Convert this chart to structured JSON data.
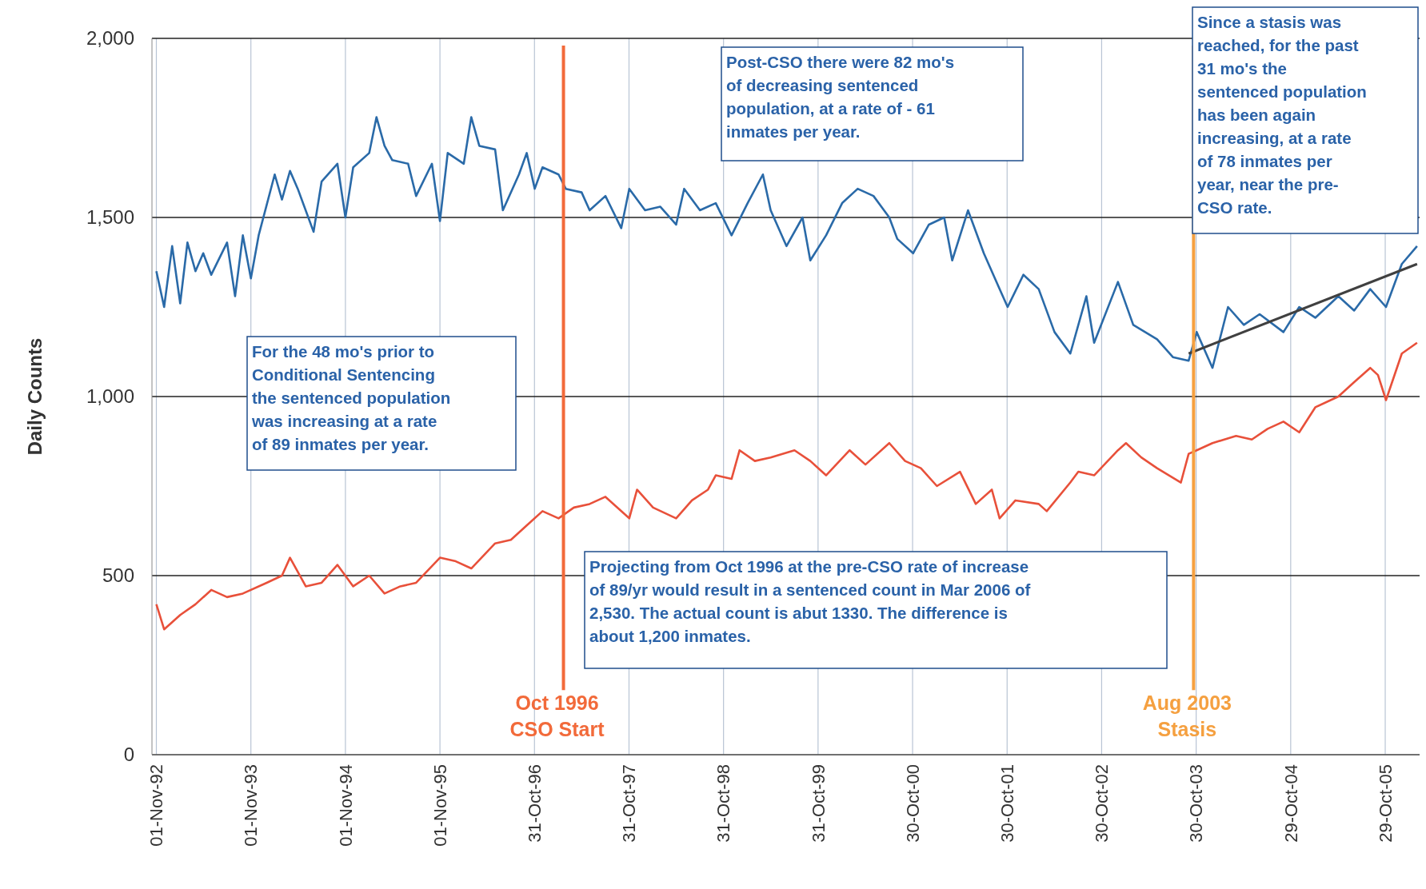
{
  "chart_data": {
    "type": "line",
    "ylabel": "Daily Counts",
    "xlim": [
      "1992-10-15",
      "2006-03-20"
    ],
    "xticks": [
      {
        "value": "1992-11-01",
        "label": "01-Nov-92"
      },
      {
        "value": "1993-11-01",
        "label": "01-Nov-93"
      },
      {
        "value": "1994-11-01",
        "label": "01-Nov-94"
      },
      {
        "value": "1995-11-01",
        "label": "01-Nov-95"
      },
      {
        "value": "1996-10-31",
        "label": "31-Oct-96"
      },
      {
        "value": "1997-10-31",
        "label": "31-Oct-97"
      },
      {
        "value": "1998-10-31",
        "label": "31-Oct-98"
      },
      {
        "value": "1999-10-31",
        "label": "31-Oct-99"
      },
      {
        "value": "2000-10-30",
        "label": "30-Oct-00"
      },
      {
        "value": "2001-10-30",
        "label": "30-Oct-01"
      },
      {
        "value": "2002-10-30",
        "label": "30-Oct-02"
      },
      {
        "value": "2003-10-30",
        "label": "30-Oct-03"
      },
      {
        "value": "2004-10-29",
        "label": "29-Oct-04"
      },
      {
        "value": "2005-10-29",
        "label": "29-Oct-05"
      }
    ],
    "ylim": [
      0,
      2000
    ],
    "yticks": [
      0,
      500,
      {
        "value": 1000,
        "label": "1,000"
      },
      {
        "value": 1500,
        "label": "1,500"
      },
      {
        "value": 2000,
        "label": "2,000"
      }
    ],
    "grid": true,
    "marker": "none",
    "line_style": "solid",
    "series": [
      {
        "color": "#2a6aa8",
        "x": [
          "1992-11",
          "1992-12",
          "1993-01",
          "1993-02",
          "1993-03",
          "1993-04",
          "1993-05",
          "1993-06",
          "1993-08",
          "1993-09",
          "1993-10",
          "1993-11",
          "1993-12",
          "1994-02",
          "1994-03",
          "1994-04",
          "1994-05",
          "1994-07",
          "1994-08",
          "1994-10",
          "1994-11",
          "1994-12",
          "1995-02",
          "1995-03",
          "1995-04",
          "1995-05",
          "1995-07",
          "1995-08",
          "1995-10",
          "1995-11",
          "1995-12",
          "1996-02",
          "1996-03",
          "1996-04",
          "1996-06",
          "1996-07",
          "1996-09",
          "1996-10",
          "1996-11",
          "1996-12",
          "1997-02",
          "1997-03",
          "1997-05",
          "1997-06",
          "1997-08",
          "1997-10",
          "1997-11",
          "1998-01",
          "1998-03",
          "1998-05",
          "1998-06",
          "1998-08",
          "1998-10",
          "1998-12",
          "1999-02",
          "1999-04",
          "1999-05",
          "1999-07",
          "1999-09",
          "1999-10",
          "1999-12",
          "2000-02",
          "2000-04",
          "2000-06",
          "2000-08",
          "2000-09",
          "2000-11",
          "2001-01",
          "2001-03",
          "2001-04",
          "2001-06",
          "2001-08",
          "2001-10",
          "2001-11",
          "2002-01",
          "2002-03",
          "2002-05",
          "2002-07",
          "2002-09",
          "2002-10",
          "2003-01",
          "2003-03",
          "2003-06",
          "2003-08",
          "2003-10",
          "2003-11",
          "2004-01",
          "2004-03",
          "2004-05",
          "2004-07",
          "2004-10",
          "2004-12",
          "2005-02",
          "2005-05",
          "2005-07",
          "2005-09",
          "2005-11",
          "2006-01",
          "2006-03"
        ],
        "values": [
          1350,
          1250,
          1420,
          1260,
          1430,
          1350,
          1400,
          1340,
          1430,
          1280,
          1450,
          1330,
          1450,
          1620,
          1550,
          1630,
          1580,
          1460,
          1600,
          1650,
          1500,
          1640,
          1680,
          1780,
          1700,
          1660,
          1650,
          1560,
          1650,
          1490,
          1680,
          1650,
          1780,
          1700,
          1690,
          1520,
          1620,
          1680,
          1580,
          1640,
          1620,
          1580,
          1570,
          1520,
          1560,
          1470,
          1580,
          1520,
          1530,
          1480,
          1580,
          1520,
          1540,
          1450,
          1540,
          1620,
          1520,
          1420,
          1500,
          1380,
          1450,
          1540,
          1580,
          1560,
          1500,
          1440,
          1400,
          1480,
          1500,
          1380,
          1520,
          1400,
          1300,
          1250,
          1340,
          1300,
          1180,
          1120,
          1280,
          1150,
          1320,
          1200,
          1160,
          1110,
          1100,
          1180,
          1080,
          1250,
          1200,
          1230,
          1180,
          1250,
          1220,
          1280,
          1240,
          1300,
          1250,
          1370,
          1420
        ]
      },
      {
        "color": "#e8503a",
        "x": [
          "1992-11",
          "1992-12",
          "1993-02",
          "1993-04",
          "1993-06",
          "1993-08",
          "1993-10",
          "1994-01",
          "1994-03",
          "1994-04",
          "1994-06",
          "1994-08",
          "1994-10",
          "1994-12",
          "1995-02",
          "1995-04",
          "1995-06",
          "1995-08",
          "1995-11",
          "1996-01",
          "1996-03",
          "1996-06",
          "1996-08",
          "1996-10",
          "1996-12",
          "1997-02",
          "1997-04",
          "1997-06",
          "1997-08",
          "1997-11",
          "1997-12",
          "1998-02",
          "1998-05",
          "1998-07",
          "1998-09",
          "1998-10",
          "1998-12",
          "1999-01",
          "1999-03",
          "1999-05",
          "1999-08",
          "1999-10",
          "1999-12",
          "2000-03",
          "2000-05",
          "2000-08",
          "2000-10",
          "2000-12",
          "2001-02",
          "2001-05",
          "2001-07",
          "2001-09",
          "2001-10",
          "2001-12",
          "2002-03",
          "2002-04",
          "2002-07",
          "2002-08",
          "2002-10",
          "2003-01",
          "2003-02",
          "2003-04",
          "2003-06",
          "2003-09",
          "2003-10",
          "2003-11",
          "2004-01",
          "2004-04",
          "2004-06",
          "2004-08",
          "2004-10",
          "2004-12",
          "2005-02",
          "2005-05",
          "2005-07",
          "2005-09",
          "2005-10",
          "2005-11",
          "2006-01",
          "2006-03"
        ],
        "values": [
          420,
          350,
          390,
          420,
          460,
          440,
          450,
          480,
          500,
          550,
          470,
          480,
          530,
          470,
          500,
          450,
          470,
          480,
          550,
          540,
          520,
          590,
          600,
          640,
          680,
          660,
          690,
          700,
          720,
          660,
          740,
          690,
          660,
          710,
          740,
          780,
          770,
          850,
          820,
          830,
          850,
          820,
          780,
          850,
          810,
          870,
          820,
          800,
          750,
          790,
          700,
          740,
          660,
          710,
          700,
          680,
          760,
          790,
          780,
          850,
          870,
          830,
          800,
          760,
          840,
          850,
          870,
          890,
          880,
          910,
          930,
          900,
          970,
          1000,
          1040,
          1080,
          1060,
          990,
          1120,
          1150
        ]
      },
      {
        "color": "#404040",
        "x": [
          "2003-10",
          "2006-03"
        ],
        "values": [
          1120,
          1370
        ]
      }
    ],
    "ref_lines": [
      {
        "axis": "x",
        "value": "1997-02-20",
        "label": "Oct 1996\nCSO Start",
        "color": "#f26a3a"
      },
      {
        "axis": "x",
        "value": "2003-10-20",
        "label": "Aug 2003\nStasis",
        "color": "#f5a040"
      }
    ],
    "annotations": [
      "For the 48 mo's prior to\nConditional Sentencing\nthe sentenced population\nwas increasing at a rate\nof 89 inmates per year.",
      "Post-CSO there were 82 mo's\nof decreasing sentenced\npopulation, at a rate of - 61\ninmates per year.",
      "Since a stasis was\nreached, for the past\n31 mo's the\nsentenced population\nhas been again\nincreasing, at a rate\nof 78 inmates per\nyear, near the pre-\nCSO rate.",
      "Projecting from Oct 1996 at the pre-CSO rate of increase\nof 89/yr would result in a sentenced count in Mar 2006 of\n2,530. The actual count is abut 1330. The difference is\nabout 1,200 inmates."
    ]
  }
}
